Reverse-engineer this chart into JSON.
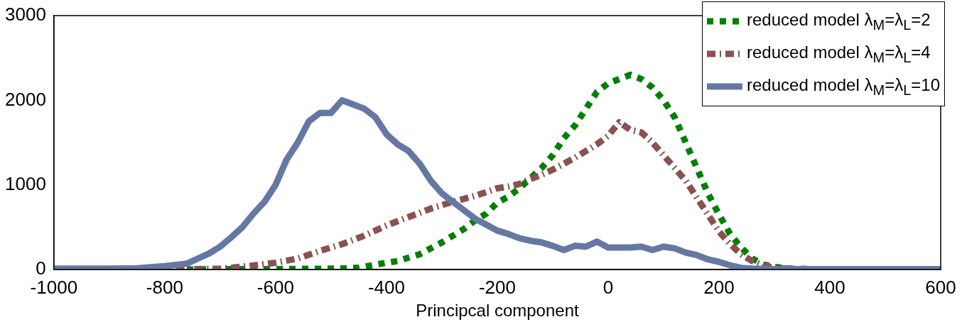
{
  "chart_data": {
    "type": "line",
    "xlabel": "Principcal component",
    "xlim": [
      -1000,
      600
    ],
    "xticks": [
      -1000,
      -800,
      -600,
      -400,
      -200,
      0,
      200,
      400,
      600
    ],
    "ylim": [
      0,
      3000
    ],
    "yticks": [
      0,
      1000,
      2000,
      3000
    ],
    "grid": false,
    "legend": "top right",
    "marker": "none",
    "series": [
      {
        "name": "reduced model λ$_{M}$=λ$_{L}$=2",
        "color": "#008000",
        "line_style": "dotted",
        "x": [
          -760,
          -700,
          -600,
          -500,
          -450,
          -400,
          -380,
          -360,
          -340,
          -320,
          -300,
          -280,
          -260,
          -240,
          -220,
          -200,
          -180,
          -160,
          -140,
          -120,
          -100,
          -80,
          -60,
          -40,
          -20,
          0,
          20,
          40,
          60,
          80,
          100,
          120,
          140,
          160,
          180,
          200,
          220,
          240,
          260,
          280,
          300,
          330,
          400,
          600
        ],
        "values": [
          0,
          5,
          5,
          10,
          20,
          80,
          100,
          140,
          180,
          250,
          320,
          400,
          480,
          580,
          660,
          790,
          860,
          960,
          1080,
          1200,
          1350,
          1550,
          1700,
          1900,
          2100,
          2200,
          2250,
          2300,
          2250,
          2150,
          2000,
          1800,
          1500,
          1200,
          900,
          650,
          420,
          260,
          130,
          60,
          30,
          10,
          0,
          0
        ]
      },
      {
        "name": "reduced model λ$_{M}$=λ$_{L}$=4",
        "color": "#8a5151",
        "line_style": "dashdot",
        "x": [
          -780,
          -700,
          -650,
          -600,
          -560,
          -520,
          -480,
          -440,
          -400,
          -360,
          -320,
          -280,
          -240,
          -200,
          -180,
          -160,
          -140,
          -120,
          -100,
          -80,
          -60,
          -40,
          -20,
          0,
          20,
          40,
          60,
          80,
          100,
          120,
          140,
          160,
          180,
          200,
          220,
          240,
          260,
          280,
          300,
          340,
          400,
          600
        ],
        "values": [
          0,
          10,
          40,
          80,
          130,
          220,
          300,
          400,
          520,
          620,
          720,
          800,
          870,
          960,
          980,
          1010,
          1070,
          1120,
          1180,
          1250,
          1320,
          1400,
          1480,
          1580,
          1740,
          1650,
          1620,
          1500,
          1350,
          1200,
          1050,
          850,
          650,
          450,
          300,
          180,
          100,
          50,
          20,
          5,
          0,
          0
        ]
      },
      {
        "name": "reduced model λ$_{M}$=λ$_{L}$=10",
        "color": "#6578a4",
        "line_style": "solid",
        "x": [
          -1000,
          -900,
          -850,
          -800,
          -760,
          -740,
          -720,
          -700,
          -680,
          -660,
          -640,
          -620,
          -600,
          -580,
          -560,
          -540,
          -520,
          -500,
          -480,
          -460,
          -440,
          -420,
          -400,
          -380,
          -360,
          -340,
          -320,
          -300,
          -280,
          -260,
          -240,
          -220,
          -200,
          -180,
          -160,
          -140,
          -120,
          -100,
          -80,
          -60,
          -40,
          -20,
          0,
          20,
          40,
          60,
          80,
          100,
          120,
          140,
          160,
          180,
          200,
          220,
          240,
          260,
          300,
          400,
          600
        ],
        "values": [
          10,
          10,
          15,
          40,
          70,
          130,
          190,
          270,
          380,
          500,
          660,
          800,
          1000,
          1300,
          1500,
          1750,
          1850,
          1850,
          2000,
          1950,
          1900,
          1800,
          1600,
          1480,
          1400,
          1250,
          1050,
          900,
          800,
          700,
          600,
          530,
          460,
          420,
          370,
          340,
          320,
          280,
          230,
          280,
          270,
          330,
          260,
          260,
          260,
          270,
          230,
          270,
          250,
          200,
          170,
          120,
          90,
          50,
          20,
          10,
          5,
          5,
          5
        ]
      }
    ]
  }
}
